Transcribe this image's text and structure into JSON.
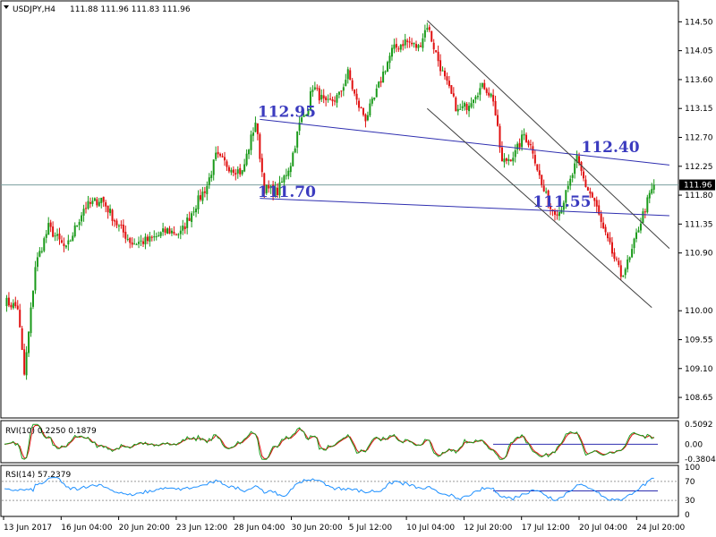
{
  "header": {
    "symbol": "USDJPY,H4",
    "ohlc": "111.88 111.96 111.83 111.96"
  },
  "colors": {
    "up": "#1a9a1a",
    "down": "#e01010",
    "trendline": "#2f2fb0",
    "channel": "#404040",
    "price_line": "#7a9e9e",
    "rvi_main": "#1a9a1a",
    "rvi_signal": "#e01010",
    "rsi_line": "#1e90ff"
  },
  "chart_data": [
    {
      "type": "candlestick",
      "name": "price",
      "ylim": [
        108.4,
        114.7
      ],
      "y_ticks": [
        "114.50",
        "114.05",
        "113.60",
        "113.15",
        "112.70",
        "112.25",
        "111.80",
        "111.35",
        "110.90",
        "110.00",
        "109.55",
        "109.10",
        "108.65"
      ],
      "current_price": "111.96",
      "x_ticks": [
        "13 Jun 2017",
        "16 Jun 04:00",
        "20 Jun 20:00",
        "23 Jun 12:00",
        "28 Jun 04:00",
        "30 Jun 20:00",
        "5 Jul 12:00",
        "10 Jul 04:00",
        "12 Jul 20:00",
        "17 Jul 12:00",
        "20 Jul 04:00",
        "24 Jul 20:00"
      ],
      "anchors": [
        [
          0,
          110.15
        ],
        [
          6,
          110.05
        ],
        [
          9,
          109.0
        ],
        [
          11,
          109.65
        ],
        [
          14,
          110.7
        ],
        [
          20,
          111.3
        ],
        [
          28,
          110.95
        ],
        [
          36,
          111.6
        ],
        [
          44,
          111.75
        ],
        [
          52,
          111.3
        ],
        [
          58,
          111.05
        ],
        [
          66,
          111.1
        ],
        [
          74,
          111.25
        ],
        [
          80,
          111.2
        ],
        [
          86,
          111.6
        ],
        [
          92,
          111.95
        ],
        [
          96,
          112.4
        ],
        [
          102,
          112.25
        ],
        [
          108,
          112.15
        ],
        [
          114,
          112.95
        ],
        [
          118,
          111.9
        ],
        [
          124,
          111.85
        ],
        [
          130,
          112.3
        ],
        [
          134,
          112.9
        ],
        [
          138,
          113.2
        ],
        [
          140,
          113.5
        ],
        [
          146,
          113.2
        ],
        [
          152,
          113.35
        ],
        [
          156,
          113.7
        ],
        [
          160,
          113.25
        ],
        [
          164,
          113.0
        ],
        [
          168,
          113.3
        ],
        [
          172,
          113.7
        ],
        [
          176,
          114.05
        ],
        [
          182,
          114.2
        ],
        [
          188,
          114.1
        ],
        [
          192,
          114.45
        ],
        [
          196,
          114.0
        ],
        [
          200,
          113.6
        ],
        [
          206,
          113.1
        ],
        [
          210,
          113.2
        ],
        [
          214,
          113.4
        ],
        [
          218,
          113.5
        ],
        [
          222,
          113.3
        ],
        [
          226,
          112.3
        ],
        [
          232,
          112.45
        ],
        [
          236,
          112.75
        ],
        [
          240,
          112.5
        ],
        [
          244,
          111.95
        ],
        [
          248,
          111.6
        ],
        [
          252,
          111.55
        ],
        [
          256,
          111.9
        ],
        [
          260,
          112.35
        ],
        [
          264,
          111.95
        ],
        [
          268,
          111.7
        ],
        [
          272,
          111.25
        ],
        [
          276,
          110.9
        ],
        [
          280,
          110.55
        ],
        [
          284,
          110.8
        ],
        [
          288,
          111.3
        ],
        [
          292,
          111.7
        ],
        [
          295,
          111.96
        ]
      ],
      "trendlines": [
        {
          "from": [
            116,
            112.98
          ],
          "to": [
            302,
            112.27
          ]
        },
        {
          "from": [
            116,
            111.75
          ],
          "to": [
            302,
            111.48
          ]
        }
      ],
      "channel": [
        {
          "from": [
            192,
            114.52
          ],
          "to": [
            302,
            110.97
          ]
        },
        {
          "from": [
            192,
            113.15
          ],
          "to": [
            294,
            110.05
          ]
        }
      ],
      "annotations": [
        {
          "text": "112.95",
          "x": 115,
          "y": 112.95
        },
        {
          "text": "111.70",
          "x": 115,
          "y": 111.7
        },
        {
          "text": "112.40",
          "x": 262,
          "y": 112.4
        },
        {
          "text": "111.55",
          "x": 240,
          "y": 111.55
        }
      ]
    },
    {
      "type": "line",
      "name": "RVI(10)",
      "label": "RVI(10) 0.2250 0.1879",
      "ylim": [
        -0.42,
        0.55
      ],
      "y_ticks": [
        "0.5092",
        "0.00",
        "-0.3804"
      ],
      "level": 0.0
    },
    {
      "type": "line",
      "name": "RSI(14)",
      "label": "RSI(14) 57.2379",
      "ylim": [
        0,
        100
      ],
      "y_ticks": [
        "100",
        "70",
        "30",
        "0"
      ],
      "levels": [
        70,
        30
      ]
    }
  ]
}
